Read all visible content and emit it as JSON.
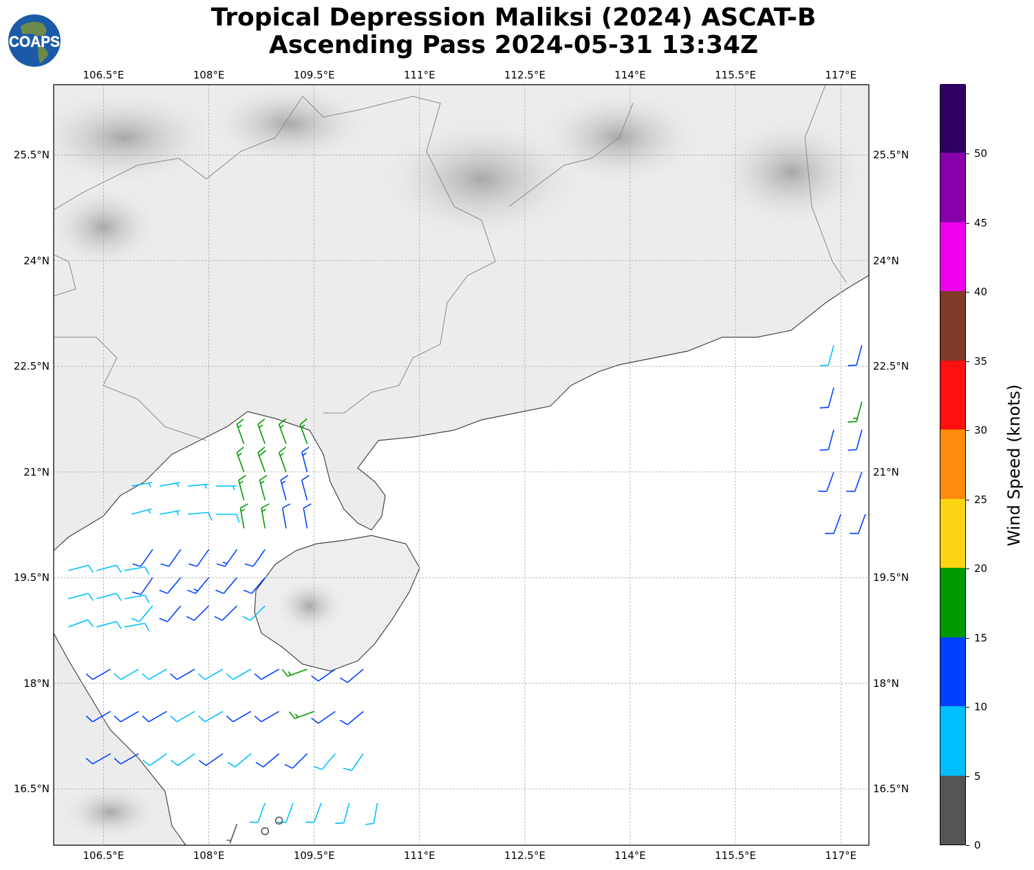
{
  "title": {
    "line1": "Tropical Depression Maliksi (2024) ASCAT-B",
    "line2": "Ascending Pass 2024-05-31 13:34Z"
  },
  "logo": {
    "text": "COAPS"
  },
  "chart_data": {
    "type": "scatter",
    "subtype": "wind-barbs",
    "title": "Tropical Depression Maliksi (2024) ASCAT-B Ascending Pass 2024-05-31 13:34Z",
    "lon_ticks": [
      106.5,
      108,
      109.5,
      111,
      112.5,
      114,
      115.5,
      117
    ],
    "lon_tick_labels": [
      "106.5°E",
      "108°E",
      "109.5°E",
      "111°E",
      "112.5°E",
      "114°E",
      "115.5°E",
      "117°E"
    ],
    "lat_ticks": [
      25.5,
      24,
      22.5,
      21,
      19.5,
      18,
      16.5
    ],
    "lat_tick_labels": [
      "25.5°N",
      "24°N",
      "22.5°N",
      "21°N",
      "19.5°N",
      "18°N",
      "16.5°N"
    ],
    "lon_range": [
      105.79,
      117.4
    ],
    "lat_range": [
      15.7,
      26.5
    ],
    "grid": true,
    "colorbar": {
      "label": "Wind Speed (knots)",
      "ticks": [
        0,
        5,
        10,
        15,
        20,
        25,
        30,
        35,
        40,
        45,
        50
      ],
      "range": [
        0,
        55
      ],
      "colors": [
        "#555555",
        "#00bfff",
        "#0040ff",
        "#009900",
        "#fdd512",
        "#ff8c0a",
        "#ff1010",
        "#7f3a28",
        "#ee00ee",
        "#8800aa",
        "#2e0060"
      ]
    },
    "barbs_fields": [
      "lon",
      "lat",
      "speed_kt",
      "direction_deg"
    ],
    "barbs": [
      [
        106.9,
        20.8,
        7,
        80
      ],
      [
        107.3,
        20.8,
        7,
        80
      ],
      [
        107.7,
        20.8,
        7,
        85
      ],
      [
        108.1,
        20.8,
        7,
        90
      ],
      [
        106.9,
        20.4,
        7,
        75
      ],
      [
        107.3,
        20.4,
        7,
        80
      ],
      [
        107.7,
        20.4,
        8,
        85
      ],
      [
        108.1,
        20.4,
        8,
        90
      ],
      [
        108.5,
        21.4,
        17,
        340
      ],
      [
        108.8,
        21.4,
        17,
        340
      ],
      [
        109.1,
        21.4,
        16,
        340
      ],
      [
        109.4,
        21.4,
        17,
        340
      ],
      [
        108.5,
        21.0,
        17,
        340
      ],
      [
        108.8,
        21.0,
        18,
        340
      ],
      [
        109.1,
        21.0,
        17,
        340
      ],
      [
        109.4,
        21.0,
        13,
        345
      ],
      [
        108.5,
        20.6,
        17,
        345
      ],
      [
        108.8,
        20.6,
        16,
        345
      ],
      [
        109.1,
        20.6,
        13,
        345
      ],
      [
        109.4,
        20.6,
        12,
        345
      ],
      [
        108.5,
        20.2,
        16,
        350
      ],
      [
        108.8,
        20.2,
        17,
        350
      ],
      [
        109.1,
        20.2,
        12,
        350
      ],
      [
        109.4,
        20.2,
        12,
        350
      ],
      [
        107.2,
        19.9,
        12,
        215
      ],
      [
        107.6,
        19.9,
        12,
        215
      ],
      [
        108.0,
        19.9,
        12,
        215
      ],
      [
        108.4,
        19.9,
        13,
        215
      ],
      [
        108.8,
        19.9,
        12,
        215
      ],
      [
        107.2,
        19.5,
        12,
        215
      ],
      [
        107.6,
        19.5,
        12,
        220
      ],
      [
        108.0,
        19.5,
        13,
        220
      ],
      [
        108.4,
        19.5,
        12,
        220
      ],
      [
        108.8,
        19.5,
        12,
        220
      ],
      [
        107.2,
        19.1,
        8,
        220
      ],
      [
        107.6,
        19.1,
        12,
        220
      ],
      [
        108.0,
        19.1,
        12,
        225
      ],
      [
        108.4,
        19.1,
        12,
        225
      ],
      [
        108.8,
        19.1,
        8,
        225
      ],
      [
        106.0,
        19.6,
        8,
        75
      ],
      [
        106.4,
        19.6,
        8,
        75
      ],
      [
        106.8,
        19.6,
        8,
        80
      ],
      [
        106.0,
        19.2,
        8,
        75
      ],
      [
        106.4,
        19.2,
        8,
        75
      ],
      [
        106.8,
        19.2,
        8,
        80
      ],
      [
        106.0,
        18.8,
        8,
        70
      ],
      [
        106.4,
        18.8,
        8,
        75
      ],
      [
        106.8,
        18.8,
        8,
        80
      ],
      [
        106.6,
        18.2,
        12,
        240
      ],
      [
        107.0,
        18.2,
        8,
        240
      ],
      [
        107.4,
        18.2,
        8,
        240
      ],
      [
        107.8,
        18.2,
        12,
        240
      ],
      [
        108.2,
        18.2,
        8,
        240
      ],
      [
        108.6,
        18.2,
        8,
        240
      ],
      [
        109.0,
        18.2,
        12,
        240
      ],
      [
        109.4,
        18.2,
        17,
        250
      ],
      [
        109.8,
        18.2,
        12,
        235
      ],
      [
        110.2,
        18.2,
        12,
        230
      ],
      [
        106.6,
        17.6,
        12,
        240
      ],
      [
        107.0,
        17.6,
        12,
        240
      ],
      [
        107.4,
        17.6,
        12,
        240
      ],
      [
        107.8,
        17.6,
        8,
        240
      ],
      [
        108.2,
        17.6,
        8,
        240
      ],
      [
        108.6,
        17.6,
        12,
        240
      ],
      [
        109.0,
        17.6,
        12,
        240
      ],
      [
        109.5,
        17.6,
        16,
        250
      ],
      [
        109.8,
        17.6,
        12,
        235
      ],
      [
        110.2,
        17.6,
        12,
        230
      ],
      [
        106.6,
        17.0,
        12,
        240
      ],
      [
        107.0,
        17.0,
        12,
        240
      ],
      [
        107.4,
        17.0,
        8,
        235
      ],
      [
        107.8,
        17.0,
        8,
        235
      ],
      [
        108.2,
        17.0,
        12,
        235
      ],
      [
        108.6,
        17.0,
        8,
        230
      ],
      [
        109.0,
        17.0,
        12,
        230
      ],
      [
        109.4,
        17.0,
        12,
        225
      ],
      [
        109.8,
        17.0,
        8,
        220
      ],
      [
        110.2,
        17.0,
        8,
        215
      ],
      [
        108.8,
        16.3,
        8,
        200
      ],
      [
        109.2,
        16.3,
        8,
        200
      ],
      [
        109.6,
        16.3,
        8,
        200
      ],
      [
        110.0,
        16.3,
        8,
        195
      ],
      [
        110.4,
        16.3,
        8,
        190
      ],
      [
        108.4,
        16.0,
        3,
        200
      ],
      [
        108.8,
        15.9,
        0,
        0
      ],
      [
        109.0,
        16.05,
        0,
        0
      ],
      [
        116.9,
        22.8,
        8,
        195
      ],
      [
        117.3,
        22.8,
        12,
        195
      ],
      [
        116.9,
        22.2,
        12,
        195
      ],
      [
        117.3,
        22.0,
        16,
        195
      ],
      [
        116.9,
        21.6,
        12,
        195
      ],
      [
        117.3,
        21.6,
        12,
        195
      ],
      [
        116.9,
        21.0,
        12,
        200
      ],
      [
        117.3,
        21.0,
        12,
        200
      ],
      [
        117.0,
        20.4,
        12,
        200
      ],
      [
        117.35,
        20.4,
        12,
        200
      ]
    ]
  }
}
